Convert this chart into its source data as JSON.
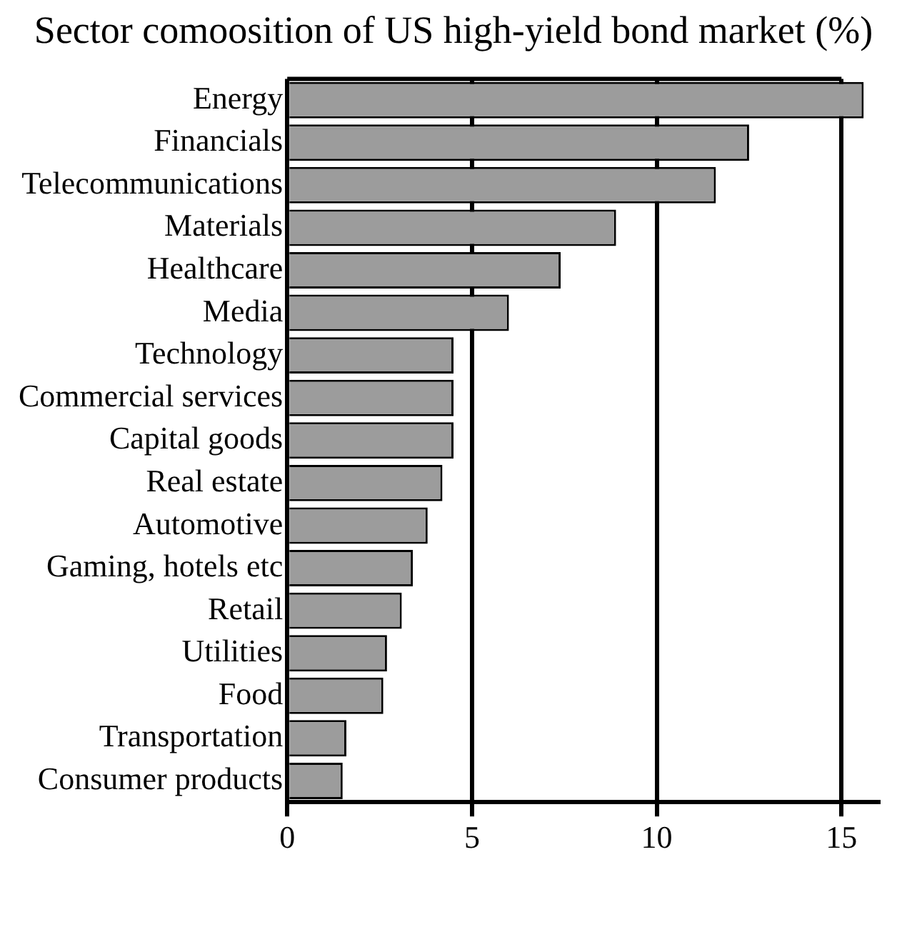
{
  "chart_data": {
    "type": "bar",
    "orientation": "horizontal",
    "title": "Sector comoosition of US high-yield bond market (%)",
    "categories": [
      "Energy",
      "Financials",
      "Telecommunications",
      "Materials",
      "Healthcare",
      "Media",
      "Technology",
      "Commercial services",
      "Capital goods",
      "Real estate",
      "Automotive",
      "Gaming, hotels etc",
      "Retail",
      "Utilities",
      "Food",
      "Transportation",
      "Consumer products"
    ],
    "values": [
      15.6,
      12.5,
      11.6,
      8.9,
      7.4,
      6.0,
      4.5,
      4.5,
      4.5,
      4.2,
      3.8,
      3.4,
      3.1,
      2.7,
      2.6,
      1.6,
      1.5
    ],
    "color": "#9c9c9c",
    "xlim": [
      0,
      16
    ],
    "xticks": [
      0,
      5,
      10,
      15
    ],
    "grid": "x"
  }
}
